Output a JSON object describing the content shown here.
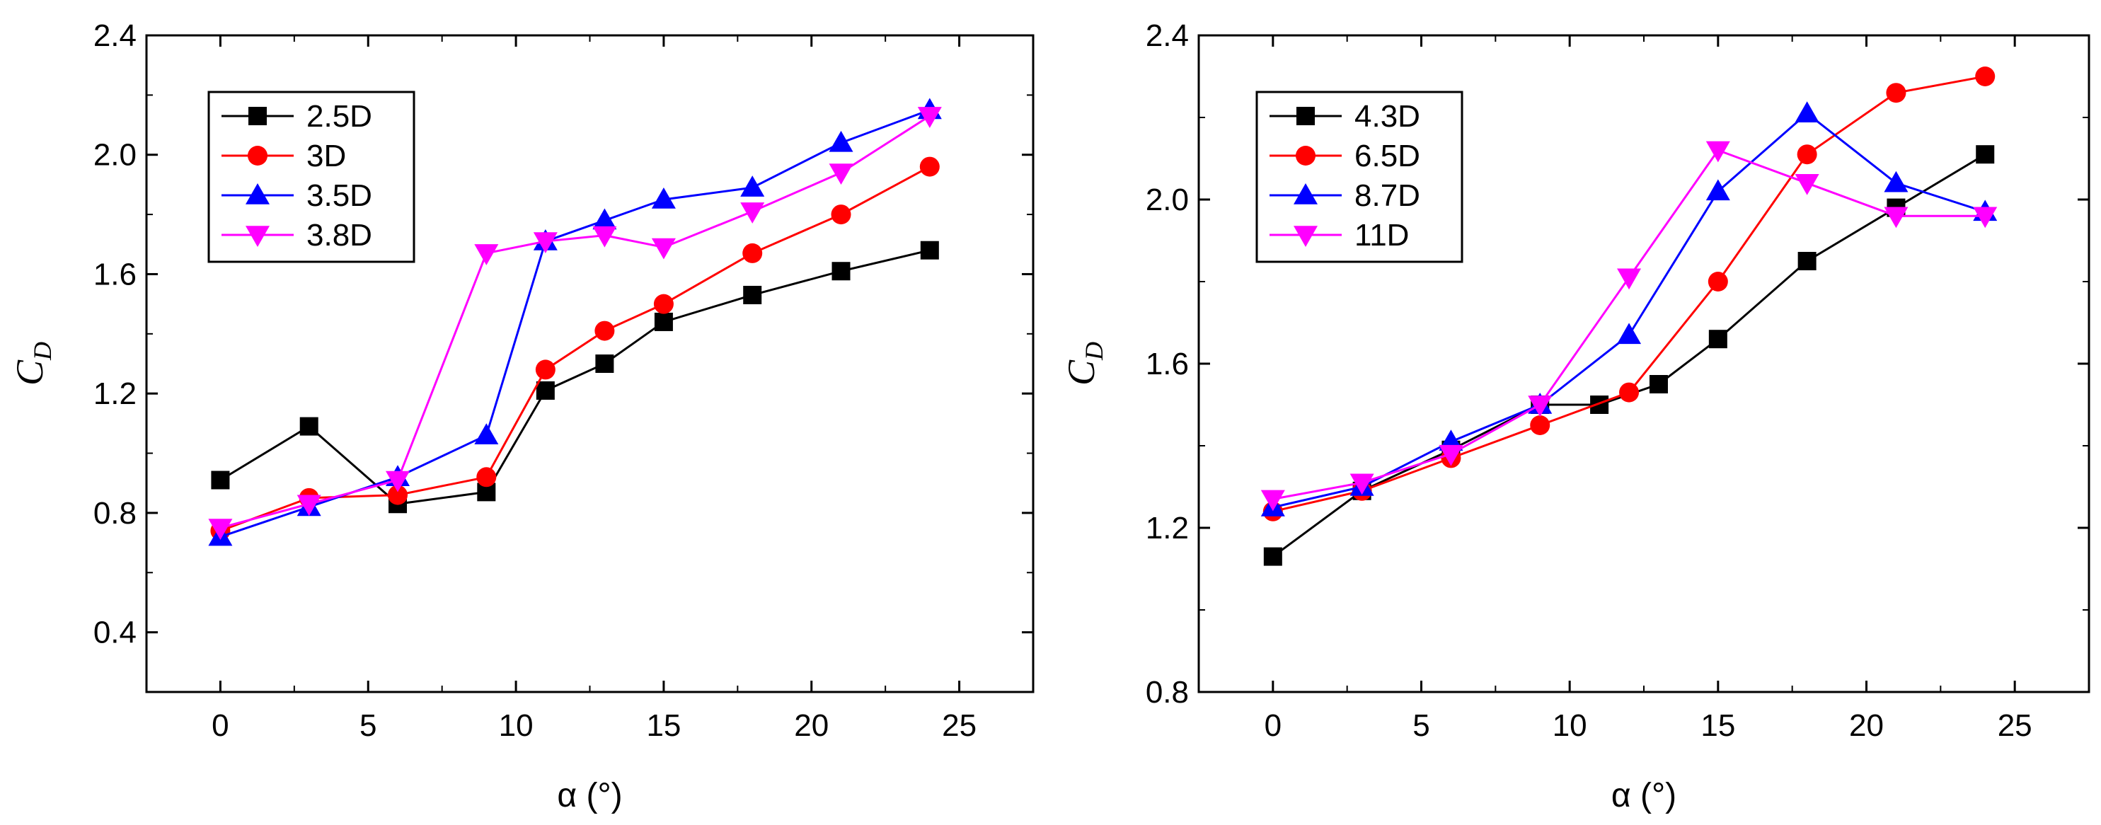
{
  "chart_data": [
    {
      "type": "line",
      "xlabel": "α (°)",
      "ylabel": "C_D",
      "ylabel_main": "C",
      "ylabel_sub": "D",
      "xlim": [
        -2.5,
        27.5
      ],
      "ylim": [
        0.2,
        2.4
      ],
      "xticks": [
        0,
        5,
        10,
        15,
        20,
        25
      ],
      "yticks": [
        0.4,
        0.8,
        1.2,
        1.6,
        2.0,
        2.4
      ],
      "ytick_labels": [
        "0.4",
        "0.8",
        "1.2",
        "1.6",
        "2.0",
        "2.4"
      ],
      "legend_position": "top-left",
      "series": [
        {
          "name": "2.5D",
          "color": "#000000",
          "marker": "square",
          "x": [
            0,
            3,
            6,
            9,
            11,
            13,
            15,
            18,
            21,
            24
          ],
          "y": [
            0.91,
            1.09,
            0.83,
            0.87,
            1.21,
            1.3,
            1.44,
            1.53,
            1.61,
            1.68
          ]
        },
        {
          "name": "3D",
          "color": "#ff0000",
          "marker": "circle",
          "x": [
            0,
            3,
            6,
            9,
            11,
            13,
            15,
            18,
            21,
            24
          ],
          "y": [
            0.74,
            0.85,
            0.86,
            0.92,
            1.28,
            1.41,
            1.5,
            1.67,
            1.8,
            1.96
          ]
        },
        {
          "name": "3.5D",
          "color": "#0000ff",
          "marker": "triangle-up",
          "x": [
            0,
            3,
            6,
            9,
            11,
            13,
            15,
            18,
            21,
            24
          ],
          "y": [
            0.72,
            0.82,
            0.92,
            1.06,
            1.71,
            1.78,
            1.85,
            1.89,
            2.04,
            2.15
          ]
        },
        {
          "name": "3.8D",
          "color": "#ff00ff",
          "marker": "triangle-down",
          "x": [
            0,
            3,
            6,
            9,
            11,
            13,
            15,
            18,
            21,
            24
          ],
          "y": [
            0.75,
            0.83,
            0.91,
            1.67,
            1.71,
            1.73,
            1.69,
            1.81,
            1.94,
            2.13
          ]
        }
      ]
    },
    {
      "type": "line",
      "xlabel": "α (°)",
      "ylabel": "C_D",
      "ylabel_main": "C",
      "ylabel_sub": "D",
      "xlim": [
        -2.5,
        27.5
      ],
      "ylim": [
        0.8,
        2.4
      ],
      "xticks": [
        0,
        5,
        10,
        15,
        20,
        25
      ],
      "yticks": [
        0.8,
        1.2,
        1.6,
        2.0,
        2.4
      ],
      "ytick_labels": [
        "0.8",
        "1.2",
        "1.6",
        "2.0",
        "2.4"
      ],
      "legend_position": "top-left",
      "series": [
        {
          "name": "4.3D",
          "color": "#000000",
          "marker": "square",
          "x": [
            0,
            3,
            6,
            9,
            11,
            13,
            15,
            18,
            21,
            24
          ],
          "y": [
            1.13,
            1.29,
            1.39,
            1.5,
            1.5,
            1.55,
            1.66,
            1.85,
            1.98,
            2.11
          ]
        },
        {
          "name": "6.5D",
          "color": "#ff0000",
          "marker": "circle",
          "x": [
            0,
            3,
            6,
            9,
            12,
            15,
            18,
            21,
            24
          ],
          "y": [
            1.24,
            1.29,
            1.37,
            1.45,
            1.53,
            1.8,
            2.11,
            2.26,
            2.3
          ]
        },
        {
          "name": "8.7D",
          "color": "#0000ff",
          "marker": "triangle-up",
          "x": [
            0,
            3,
            6,
            9,
            12,
            15,
            18,
            21,
            24
          ],
          "y": [
            1.25,
            1.3,
            1.41,
            1.5,
            1.67,
            2.02,
            2.21,
            2.04,
            1.97
          ]
        },
        {
          "name": "11D",
          "color": "#ff00ff",
          "marker": "triangle-down",
          "x": [
            0,
            3,
            6,
            9,
            12,
            15,
            18,
            21,
            24
          ],
          "y": [
            1.27,
            1.31,
            1.38,
            1.5,
            1.81,
            2.12,
            2.04,
            1.96,
            1.96
          ]
        }
      ]
    }
  ]
}
